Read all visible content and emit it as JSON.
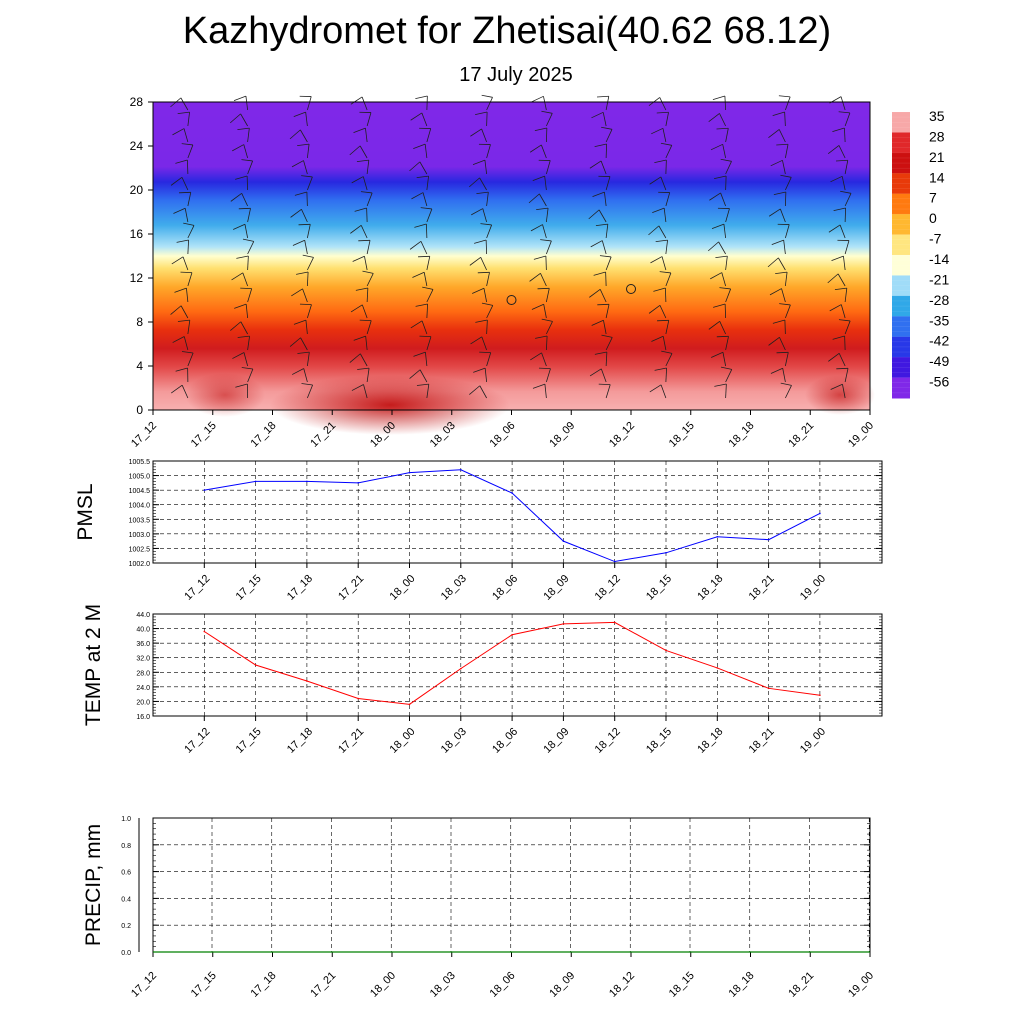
{
  "title": "Kazhydromet for Zhetisai(40.62 68.12)",
  "subtitle": "17 July 2025",
  "chart_data": [
    {
      "type": "heatmap",
      "x_ticks": [
        "17_12",
        "17_15",
        "17_18",
        "17_21",
        "18_00",
        "18_03",
        "18_06",
        "18_09",
        "18_12",
        "18_15",
        "18_18",
        "18_21",
        "19_00"
      ],
      "y_ticks": [
        0,
        4,
        8,
        12,
        16,
        20,
        24,
        28
      ],
      "ylim": [
        0,
        28
      ],
      "colorbar_labels": [
        "35",
        "28",
        "21",
        "14",
        "7",
        "0",
        "-7",
        "-14",
        "-21",
        "-28",
        "-35",
        "-42",
        "-49",
        "-56"
      ],
      "colorbar_colors": [
        "#f7a8a8",
        "#e0282a",
        "#cc1010",
        "#e83a0a",
        "#ff7a10",
        "#ffb830",
        "#ffe680",
        "#ffffd8",
        "#a0dcf8",
        "#30a8e8",
        "#3070f0",
        "#2838e8",
        "#4018e0",
        "#8028e8"
      ],
      "fill_color_bands": [
        {
          "z_from": 0,
          "z_to": 4,
          "color": "#f4a0a0"
        },
        {
          "z_from": 4,
          "z_to": 8,
          "color": "#d81e20"
        },
        {
          "z_from": 8,
          "z_to": 12,
          "color": "#ff8020"
        },
        {
          "z_from": 12,
          "z_to": 15,
          "color": "#ffe070"
        },
        {
          "z_from": 15,
          "z_to": 20,
          "color": "#40a8f0"
        },
        {
          "z_from": 20,
          "z_to": 23,
          "color": "#3030e8"
        },
        {
          "z_from": 23,
          "z_to": 28,
          "color": "#8028e8"
        }
      ],
      "calm_markers": [
        {
          "x": "18_06",
          "y": 10
        },
        {
          "x": "18_12",
          "y": 11
        }
      ]
    },
    {
      "type": "line",
      "ylabel": "PMSL",
      "categories": [
        "17_12",
        "17_15",
        "17_18",
        "17_21",
        "18_00",
        "18_03",
        "18_06",
        "18_09",
        "18_12",
        "18_15",
        "18_18",
        "18_21",
        "19_00"
      ],
      "series": [
        {
          "color": "#0000ff",
          "values": [
            1004.5,
            1004.8,
            1004.8,
            1004.75,
            1005.1,
            1005.2,
            1004.4,
            1002.75,
            1002.05,
            1002.35,
            1002.9,
            1002.8,
            1003.7
          ]
        }
      ],
      "ylim": [
        1002.0,
        1005.5
      ],
      "y_ticks": [
        "1002.0",
        "1002.5",
        "1003.0",
        "1003.5",
        "1004.0",
        "1004.5",
        "1005.0",
        "1005.5"
      ],
      "grid": true
    },
    {
      "type": "line",
      "ylabel": "TEMP at 2 M",
      "categories": [
        "17_12",
        "17_15",
        "17_18",
        "17_21",
        "18_00",
        "18_03",
        "18_06",
        "18_09",
        "18_12",
        "18_15",
        "18_18",
        "18_21",
        "19_00"
      ],
      "series": [
        {
          "color": "#ff0000",
          "values": [
            39.2,
            30.0,
            25.6,
            20.8,
            19.2,
            29.0,
            38.3,
            41.3,
            41.7,
            34.0,
            29.2,
            23.6,
            21.7
          ]
        }
      ],
      "ylim": [
        16.0,
        44.0
      ],
      "y_ticks": [
        "16.0",
        "20.0",
        "24.0",
        "28.0",
        "32.0",
        "36.0",
        "40.0",
        "44.0"
      ],
      "grid": true
    },
    {
      "type": "line",
      "ylabel": "PRECIP, mm",
      "categories": [
        "17_12",
        "17_15",
        "17_18",
        "17_21",
        "18_00",
        "18_03",
        "18_06",
        "18_09",
        "18_12",
        "18_15",
        "18_18",
        "18_21",
        "19_00"
      ],
      "series": [
        {
          "color": "#008000",
          "values": [
            0,
            0,
            0,
            0,
            0,
            0,
            0,
            0,
            0,
            0,
            0,
            0,
            0
          ]
        }
      ],
      "ylim": [
        0.0,
        1.0
      ],
      "y_ticks": [
        "0.0",
        "0.2",
        "0.4",
        "0.6",
        "0.8",
        "1.0"
      ],
      "grid": true
    }
  ]
}
